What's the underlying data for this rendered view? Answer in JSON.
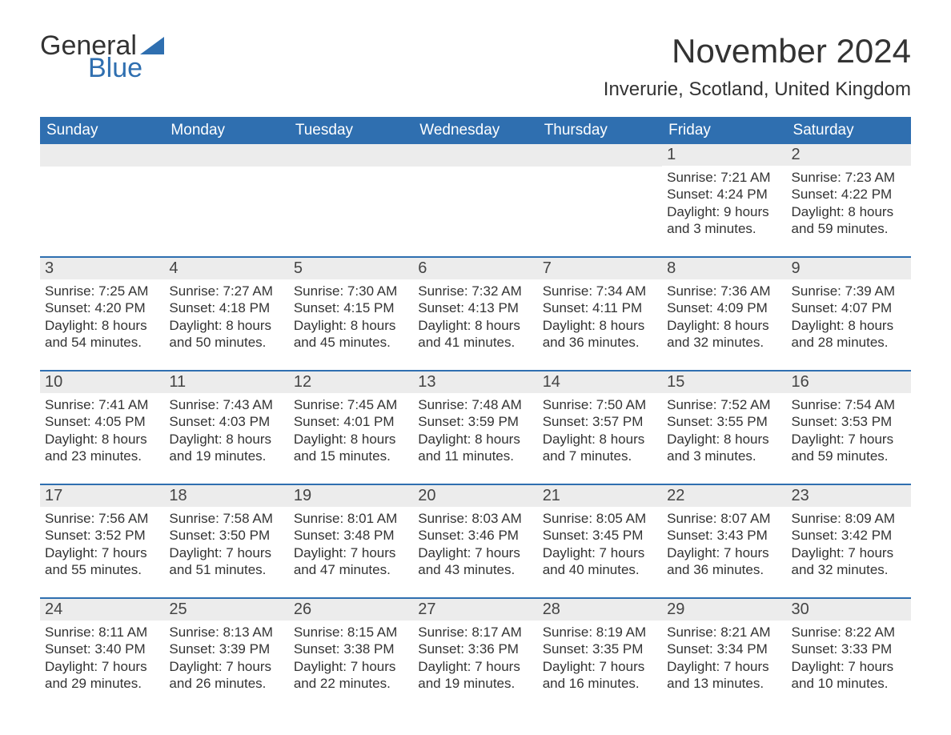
{
  "logo": {
    "word1": "General",
    "word2": "Blue",
    "accent_color": "#2f6fb0",
    "text_color": "#333333"
  },
  "title": "November 2024",
  "location": "Inverurie, Scotland, United Kingdom",
  "colors": {
    "header_bg": "#2f6fb0",
    "header_text": "#ffffff",
    "row_divider": "#2f6fb0",
    "daynum_bg": "#ececec",
    "body_text": "#333333",
    "page_bg": "#ffffff"
  },
  "typography": {
    "title_fontsize": 42,
    "location_fontsize": 24,
    "dow_fontsize": 19,
    "daynum_fontsize": 20,
    "body_fontsize": 17
  },
  "days_of_week": [
    "Sunday",
    "Monday",
    "Tuesday",
    "Wednesday",
    "Thursday",
    "Friday",
    "Saturday"
  ],
  "weeks": [
    [
      {
        "empty": true
      },
      {
        "empty": true
      },
      {
        "empty": true
      },
      {
        "empty": true
      },
      {
        "empty": true
      },
      {
        "num": "1",
        "sunrise": "Sunrise: 7:21 AM",
        "sunset": "Sunset: 4:24 PM",
        "daylight": "Daylight: 9 hours and 3 minutes."
      },
      {
        "num": "2",
        "sunrise": "Sunrise: 7:23 AM",
        "sunset": "Sunset: 4:22 PM",
        "daylight": "Daylight: 8 hours and 59 minutes."
      }
    ],
    [
      {
        "num": "3",
        "sunrise": "Sunrise: 7:25 AM",
        "sunset": "Sunset: 4:20 PM",
        "daylight": "Daylight: 8 hours and 54 minutes."
      },
      {
        "num": "4",
        "sunrise": "Sunrise: 7:27 AM",
        "sunset": "Sunset: 4:18 PM",
        "daylight": "Daylight: 8 hours and 50 minutes."
      },
      {
        "num": "5",
        "sunrise": "Sunrise: 7:30 AM",
        "sunset": "Sunset: 4:15 PM",
        "daylight": "Daylight: 8 hours and 45 minutes."
      },
      {
        "num": "6",
        "sunrise": "Sunrise: 7:32 AM",
        "sunset": "Sunset: 4:13 PM",
        "daylight": "Daylight: 8 hours and 41 minutes."
      },
      {
        "num": "7",
        "sunrise": "Sunrise: 7:34 AM",
        "sunset": "Sunset: 4:11 PM",
        "daylight": "Daylight: 8 hours and 36 minutes."
      },
      {
        "num": "8",
        "sunrise": "Sunrise: 7:36 AM",
        "sunset": "Sunset: 4:09 PM",
        "daylight": "Daylight: 8 hours and 32 minutes."
      },
      {
        "num": "9",
        "sunrise": "Sunrise: 7:39 AM",
        "sunset": "Sunset: 4:07 PM",
        "daylight": "Daylight: 8 hours and 28 minutes."
      }
    ],
    [
      {
        "num": "10",
        "sunrise": "Sunrise: 7:41 AM",
        "sunset": "Sunset: 4:05 PM",
        "daylight": "Daylight: 8 hours and 23 minutes."
      },
      {
        "num": "11",
        "sunrise": "Sunrise: 7:43 AM",
        "sunset": "Sunset: 4:03 PM",
        "daylight": "Daylight: 8 hours and 19 minutes."
      },
      {
        "num": "12",
        "sunrise": "Sunrise: 7:45 AM",
        "sunset": "Sunset: 4:01 PM",
        "daylight": "Daylight: 8 hours and 15 minutes."
      },
      {
        "num": "13",
        "sunrise": "Sunrise: 7:48 AM",
        "sunset": "Sunset: 3:59 PM",
        "daylight": "Daylight: 8 hours and 11 minutes."
      },
      {
        "num": "14",
        "sunrise": "Sunrise: 7:50 AM",
        "sunset": "Sunset: 3:57 PM",
        "daylight": "Daylight: 8 hours and 7 minutes."
      },
      {
        "num": "15",
        "sunrise": "Sunrise: 7:52 AM",
        "sunset": "Sunset: 3:55 PM",
        "daylight": "Daylight: 8 hours and 3 minutes."
      },
      {
        "num": "16",
        "sunrise": "Sunrise: 7:54 AM",
        "sunset": "Sunset: 3:53 PM",
        "daylight": "Daylight: 7 hours and 59 minutes."
      }
    ],
    [
      {
        "num": "17",
        "sunrise": "Sunrise: 7:56 AM",
        "sunset": "Sunset: 3:52 PM",
        "daylight": "Daylight: 7 hours and 55 minutes."
      },
      {
        "num": "18",
        "sunrise": "Sunrise: 7:58 AM",
        "sunset": "Sunset: 3:50 PM",
        "daylight": "Daylight: 7 hours and 51 minutes."
      },
      {
        "num": "19",
        "sunrise": "Sunrise: 8:01 AM",
        "sunset": "Sunset: 3:48 PM",
        "daylight": "Daylight: 7 hours and 47 minutes."
      },
      {
        "num": "20",
        "sunrise": "Sunrise: 8:03 AM",
        "sunset": "Sunset: 3:46 PM",
        "daylight": "Daylight: 7 hours and 43 minutes."
      },
      {
        "num": "21",
        "sunrise": "Sunrise: 8:05 AM",
        "sunset": "Sunset: 3:45 PM",
        "daylight": "Daylight: 7 hours and 40 minutes."
      },
      {
        "num": "22",
        "sunrise": "Sunrise: 8:07 AM",
        "sunset": "Sunset: 3:43 PM",
        "daylight": "Daylight: 7 hours and 36 minutes."
      },
      {
        "num": "23",
        "sunrise": "Sunrise: 8:09 AM",
        "sunset": "Sunset: 3:42 PM",
        "daylight": "Daylight: 7 hours and 32 minutes."
      }
    ],
    [
      {
        "num": "24",
        "sunrise": "Sunrise: 8:11 AM",
        "sunset": "Sunset: 3:40 PM",
        "daylight": "Daylight: 7 hours and 29 minutes."
      },
      {
        "num": "25",
        "sunrise": "Sunrise: 8:13 AM",
        "sunset": "Sunset: 3:39 PM",
        "daylight": "Daylight: 7 hours and 26 minutes."
      },
      {
        "num": "26",
        "sunrise": "Sunrise: 8:15 AM",
        "sunset": "Sunset: 3:38 PM",
        "daylight": "Daylight: 7 hours and 22 minutes."
      },
      {
        "num": "27",
        "sunrise": "Sunrise: 8:17 AM",
        "sunset": "Sunset: 3:36 PM",
        "daylight": "Daylight: 7 hours and 19 minutes."
      },
      {
        "num": "28",
        "sunrise": "Sunrise: 8:19 AM",
        "sunset": "Sunset: 3:35 PM",
        "daylight": "Daylight: 7 hours and 16 minutes."
      },
      {
        "num": "29",
        "sunrise": "Sunrise: 8:21 AM",
        "sunset": "Sunset: 3:34 PM",
        "daylight": "Daylight: 7 hours and 13 minutes."
      },
      {
        "num": "30",
        "sunrise": "Sunrise: 8:22 AM",
        "sunset": "Sunset: 3:33 PM",
        "daylight": "Daylight: 7 hours and 10 minutes."
      }
    ]
  ]
}
